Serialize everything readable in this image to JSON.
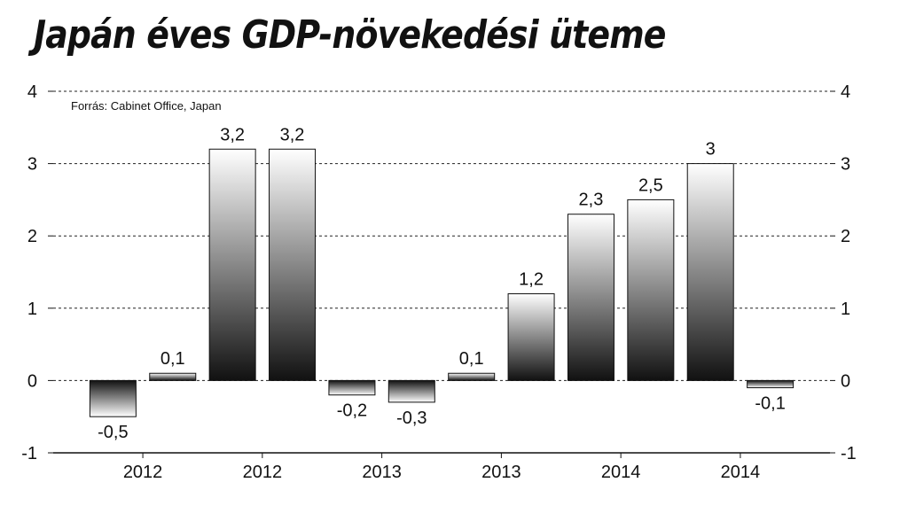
{
  "chart_data": {
    "type": "bar",
    "title": "Japán éves GDP-növekedési üteme",
    "source": "Forrás: Cabinet Office, Japan",
    "values": [
      -0.5,
      0.1,
      3.2,
      3.2,
      -0.2,
      -0.3,
      0.1,
      1.2,
      2.3,
      2.5,
      3,
      -0.1
    ],
    "value_labels": [
      "-0,5",
      "0,1",
      "3,2",
      "3,2",
      "-0,2",
      "-0,3",
      "0,1",
      "1,2",
      "2,3",
      "2,5",
      "3",
      "-0,1"
    ],
    "x_tick_labels": [
      "2012",
      "2012",
      "2013",
      "2013",
      "2014",
      "2014"
    ],
    "y_ticks": [
      "-1",
      "0",
      "1",
      "2",
      "3",
      "4"
    ],
    "ylim": [
      -1,
      4
    ],
    "grid": true,
    "xlabel": "",
    "ylabel": ""
  }
}
